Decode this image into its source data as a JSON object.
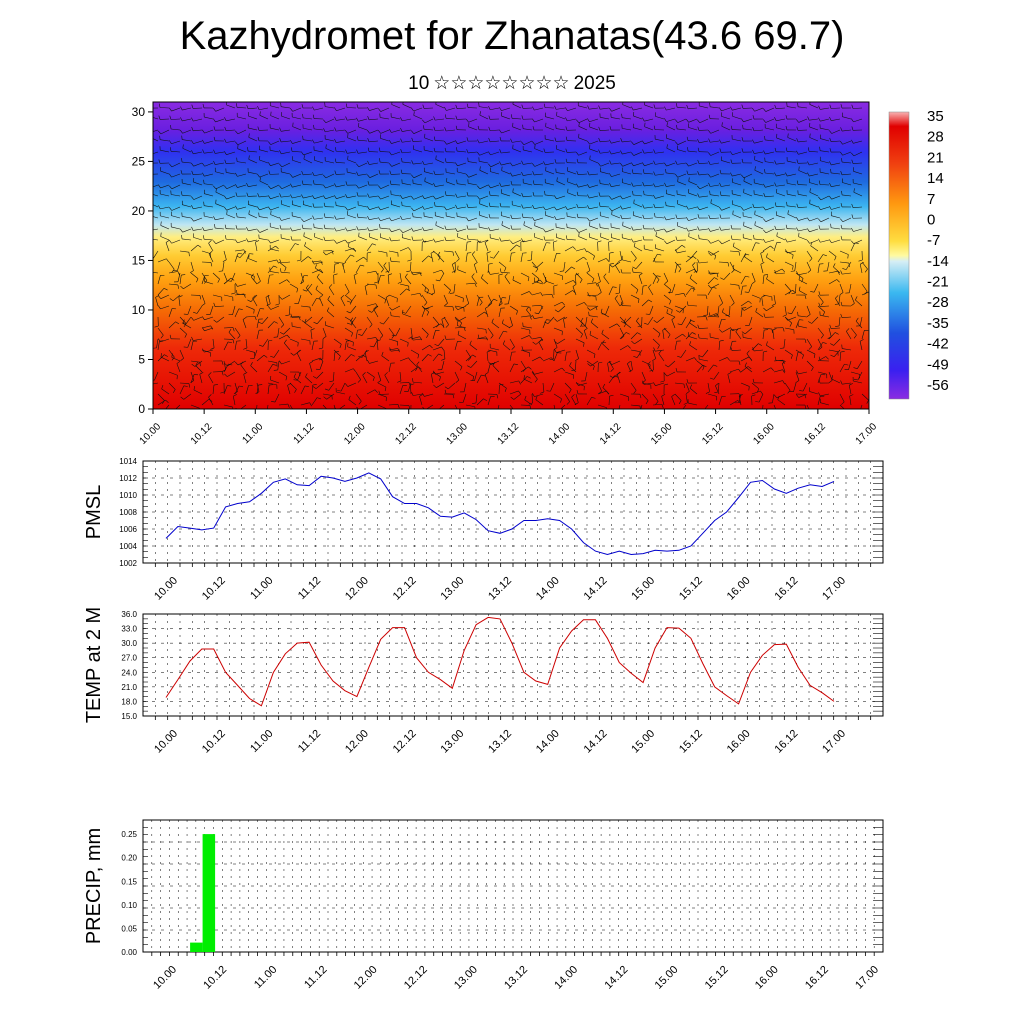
{
  "title": "Kazhydromet for Zhanatas(43.6 69.7)",
  "subtitle": {
    "day": "10",
    "month": "☆☆☆☆☆☆☆☆",
    "year": "2025"
  },
  "time_labels": [
    "10.00",
    "10.12",
    "11.00",
    "11.12",
    "12.00",
    "12.12",
    "13.00",
    "13.12",
    "14.00",
    "14.12",
    "15.00",
    "15.12",
    "16.00",
    "16.12",
    "17.00"
  ],
  "colors": {
    "pmsl_line": "#0000cc",
    "temp_line": "#cc0000",
    "precip_bar": "#00ee00"
  },
  "chart_data": [
    {
      "type": "heatmap",
      "panel": "cross-section",
      "xlabel": "",
      "ylabel": "",
      "y_ticks": [
        0,
        5,
        10,
        15,
        20,
        25,
        30
      ],
      "ylim": [
        0,
        31
      ],
      "x_categories": [
        "10.00",
        "10.12",
        "11.00",
        "11.12",
        "12.00",
        "12.12",
        "13.00",
        "13.12",
        "14.00",
        "14.12",
        "15.00",
        "15.12",
        "16.00",
        "16.12",
        "17.00"
      ],
      "colorbar_labels": [
        "35",
        "28",
        "21",
        "14",
        "7",
        "0",
        "-7",
        "-14",
        "-21",
        "-28",
        "-35",
        "-42",
        "-49",
        "-56"
      ],
      "overlay": "wind barbs"
    },
    {
      "type": "line",
      "panel": "pmsl",
      "ylabel": "PMSL",
      "y_ticks": [
        "1002",
        "1004",
        "1006",
        "1008",
        "1010",
        "1012",
        "1014"
      ],
      "ylim": [
        1002,
        1014
      ],
      "x_tick_labels": [
        "10.00",
        "10.12",
        "11.00",
        "11.12",
        "12.00",
        "12.12",
        "13.00",
        "13.12",
        "14.00",
        "14.12",
        "15.00",
        "15.12",
        "16.00",
        "16.12",
        "17.00"
      ],
      "series": [
        {
          "values": [
            1004.9,
            1006.3,
            1006.1,
            1005.9,
            1006.1,
            1008.6,
            1009.0,
            1009.2,
            1010.2,
            1011.5,
            1011.9,
            1011.2,
            1011.1,
            1012.2,
            1012.0,
            1011.6,
            1012.0,
            1012.6,
            1011.9,
            1009.8,
            1009.0,
            1009.0,
            1008.5,
            1007.5,
            1007.4,
            1007.9,
            1007.1,
            1005.8,
            1005.5,
            1006.0,
            1007.0,
            1007.0,
            1007.2,
            1007.0,
            1006.0,
            1004.4,
            1003.4,
            1003.0,
            1003.4,
            1003.0,
            1003.1,
            1003.5,
            1003.4,
            1003.5,
            1004.0,
            1005.5,
            1007.0,
            1008.0,
            1009.7,
            1011.5,
            1011.7,
            1010.7,
            1010.2,
            1010.8,
            1011.2,
            1011.0,
            1011.6
          ]
        }
      ]
    },
    {
      "type": "line",
      "panel": "temp",
      "ylabel": "TEMP at 2 M",
      "y_ticks": [
        "15.0",
        "18.0",
        "21.0",
        "24.0",
        "27.0",
        "30.0",
        "33.0",
        "36.0"
      ],
      "ylim": [
        15,
        36
      ],
      "x_tick_labels": [
        "10.00",
        "10.12",
        "11.00",
        "11.12",
        "12.00",
        "12.12",
        "13.00",
        "13.12",
        "14.00",
        "14.12",
        "15.00",
        "15.12",
        "16.00",
        "16.12",
        "17.00"
      ],
      "series": [
        {
          "values": [
            18.8,
            22.5,
            26.3,
            28.8,
            28.8,
            24.0,
            21.3,
            18.6,
            17.1,
            24.0,
            27.8,
            30.0,
            30.2,
            25.5,
            22.2,
            20.2,
            19.0,
            25.0,
            30.8,
            33.2,
            33.2,
            27.0,
            24.0,
            22.5,
            20.7,
            28.5,
            33.8,
            35.3,
            35.0,
            30.0,
            24.0,
            22.2,
            21.5,
            29.0,
            32.5,
            34.8,
            34.8,
            31.0,
            26.0,
            23.8,
            21.9,
            29.0,
            33.2,
            33.1,
            31.0,
            25.8,
            21.0,
            19.2,
            17.5,
            24.0,
            27.5,
            29.7,
            29.8,
            25.0,
            21.3,
            19.8,
            18.0
          ]
        }
      ]
    },
    {
      "type": "bar",
      "panel": "precip",
      "ylabel": "PRECIP, mm",
      "y_ticks": [
        "0.00",
        "0.05",
        "0.10",
        "0.15",
        "0.20",
        "0.25"
      ],
      "ylim": [
        0,
        0.28
      ],
      "x_tick_labels": [
        "10.00",
        "10.12",
        "11.00",
        "11.12",
        "12.00",
        "12.12",
        "13.00",
        "13.12",
        "14.00",
        "14.12",
        "15.00",
        "15.12",
        "16.00",
        "16.12",
        "17.00"
      ],
      "bars": [
        {
          "time": "10.09",
          "value": 0.02
        },
        {
          "time": "10.12",
          "value": 0.25
        }
      ]
    }
  ]
}
